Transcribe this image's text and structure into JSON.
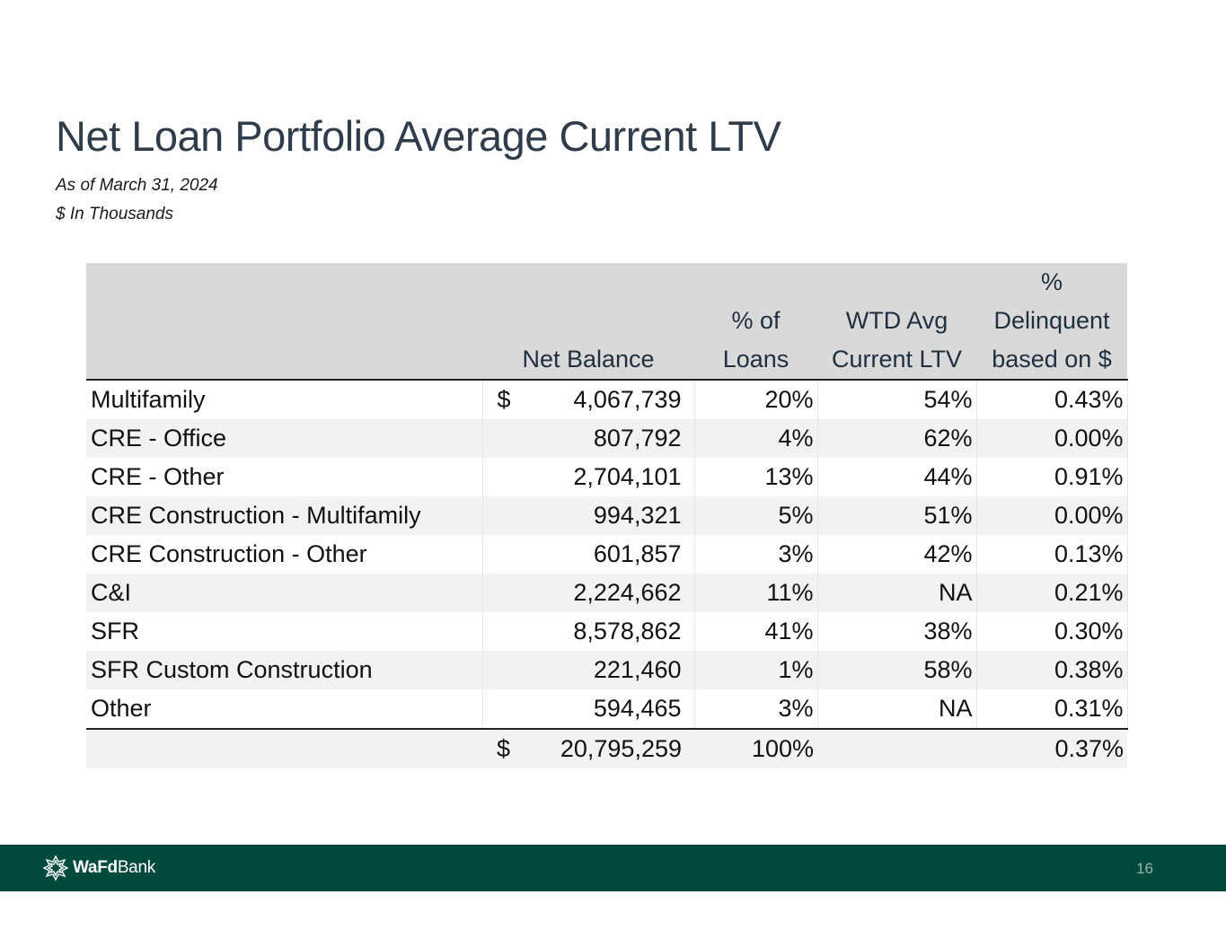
{
  "header": {
    "title": "Net Loan Portfolio Average Current LTV",
    "as_of": "As of March 31, 2024",
    "units": "$ In Thousands"
  },
  "table": {
    "columns": {
      "net_balance": "Net Balance",
      "pct_of_loans": [
        "% of",
        "Loans"
      ],
      "wtd_avg_ltv": [
        "WTD Avg",
        "Current LTV"
      ],
      "pct_delinquent": [
        "%",
        "Delinquent",
        "based on $"
      ]
    },
    "currency_symbol": "$",
    "rows": [
      {
        "category": "Multifamily",
        "currency": "$",
        "net_balance": "4,067,739",
        "pct_of_loans": "20%",
        "wtd_avg_ltv": "54%",
        "pct_delinquent": "0.43%"
      },
      {
        "category": "CRE - Office",
        "currency": "",
        "net_balance": "807,792",
        "pct_of_loans": "4%",
        "wtd_avg_ltv": "62%",
        "pct_delinquent": "0.00%"
      },
      {
        "category": "CRE - Other",
        "currency": "",
        "net_balance": "2,704,101",
        "pct_of_loans": "13%",
        "wtd_avg_ltv": "44%",
        "pct_delinquent": "0.91%"
      },
      {
        "category": "CRE Construction - Multifamily",
        "currency": "",
        "net_balance": "994,321",
        "pct_of_loans": "5%",
        "wtd_avg_ltv": "51%",
        "pct_delinquent": "0.00%"
      },
      {
        "category": "CRE Construction - Other",
        "currency": "",
        "net_balance": "601,857",
        "pct_of_loans": "3%",
        "wtd_avg_ltv": "42%",
        "pct_delinquent": "0.13%"
      },
      {
        "category": "C&I",
        "currency": "",
        "net_balance": "2,224,662",
        "pct_of_loans": "11%",
        "wtd_avg_ltv": "NA",
        "pct_delinquent": "0.21%"
      },
      {
        "category": "SFR",
        "currency": "",
        "net_balance": "8,578,862",
        "pct_of_loans": "41%",
        "wtd_avg_ltv": "38%",
        "pct_delinquent": "0.30%"
      },
      {
        "category": "SFR Custom Construction",
        "currency": "",
        "net_balance": "221,460",
        "pct_of_loans": "1%",
        "wtd_avg_ltv": "58%",
        "pct_delinquent": "0.38%"
      },
      {
        "category": "Other",
        "currency": "",
        "net_balance": "594,465",
        "pct_of_loans": "3%",
        "wtd_avg_ltv": "NA",
        "pct_delinquent": "0.31%"
      }
    ],
    "total": {
      "currency": "$",
      "net_balance": "20,795,259",
      "pct_of_loans": "100%",
      "pct_delinquent": "0.37%"
    }
  },
  "footer": {
    "brand_bold": "WaFd",
    "brand_regular": "Bank",
    "page_number": "16",
    "logo_icon": "wafd-star-logo-icon"
  },
  "colors": {
    "title": "#2e3c4b",
    "header_bg": "#d9d9d9",
    "stripe": "#f2f2f2",
    "footer_bg": "#004a3d"
  }
}
